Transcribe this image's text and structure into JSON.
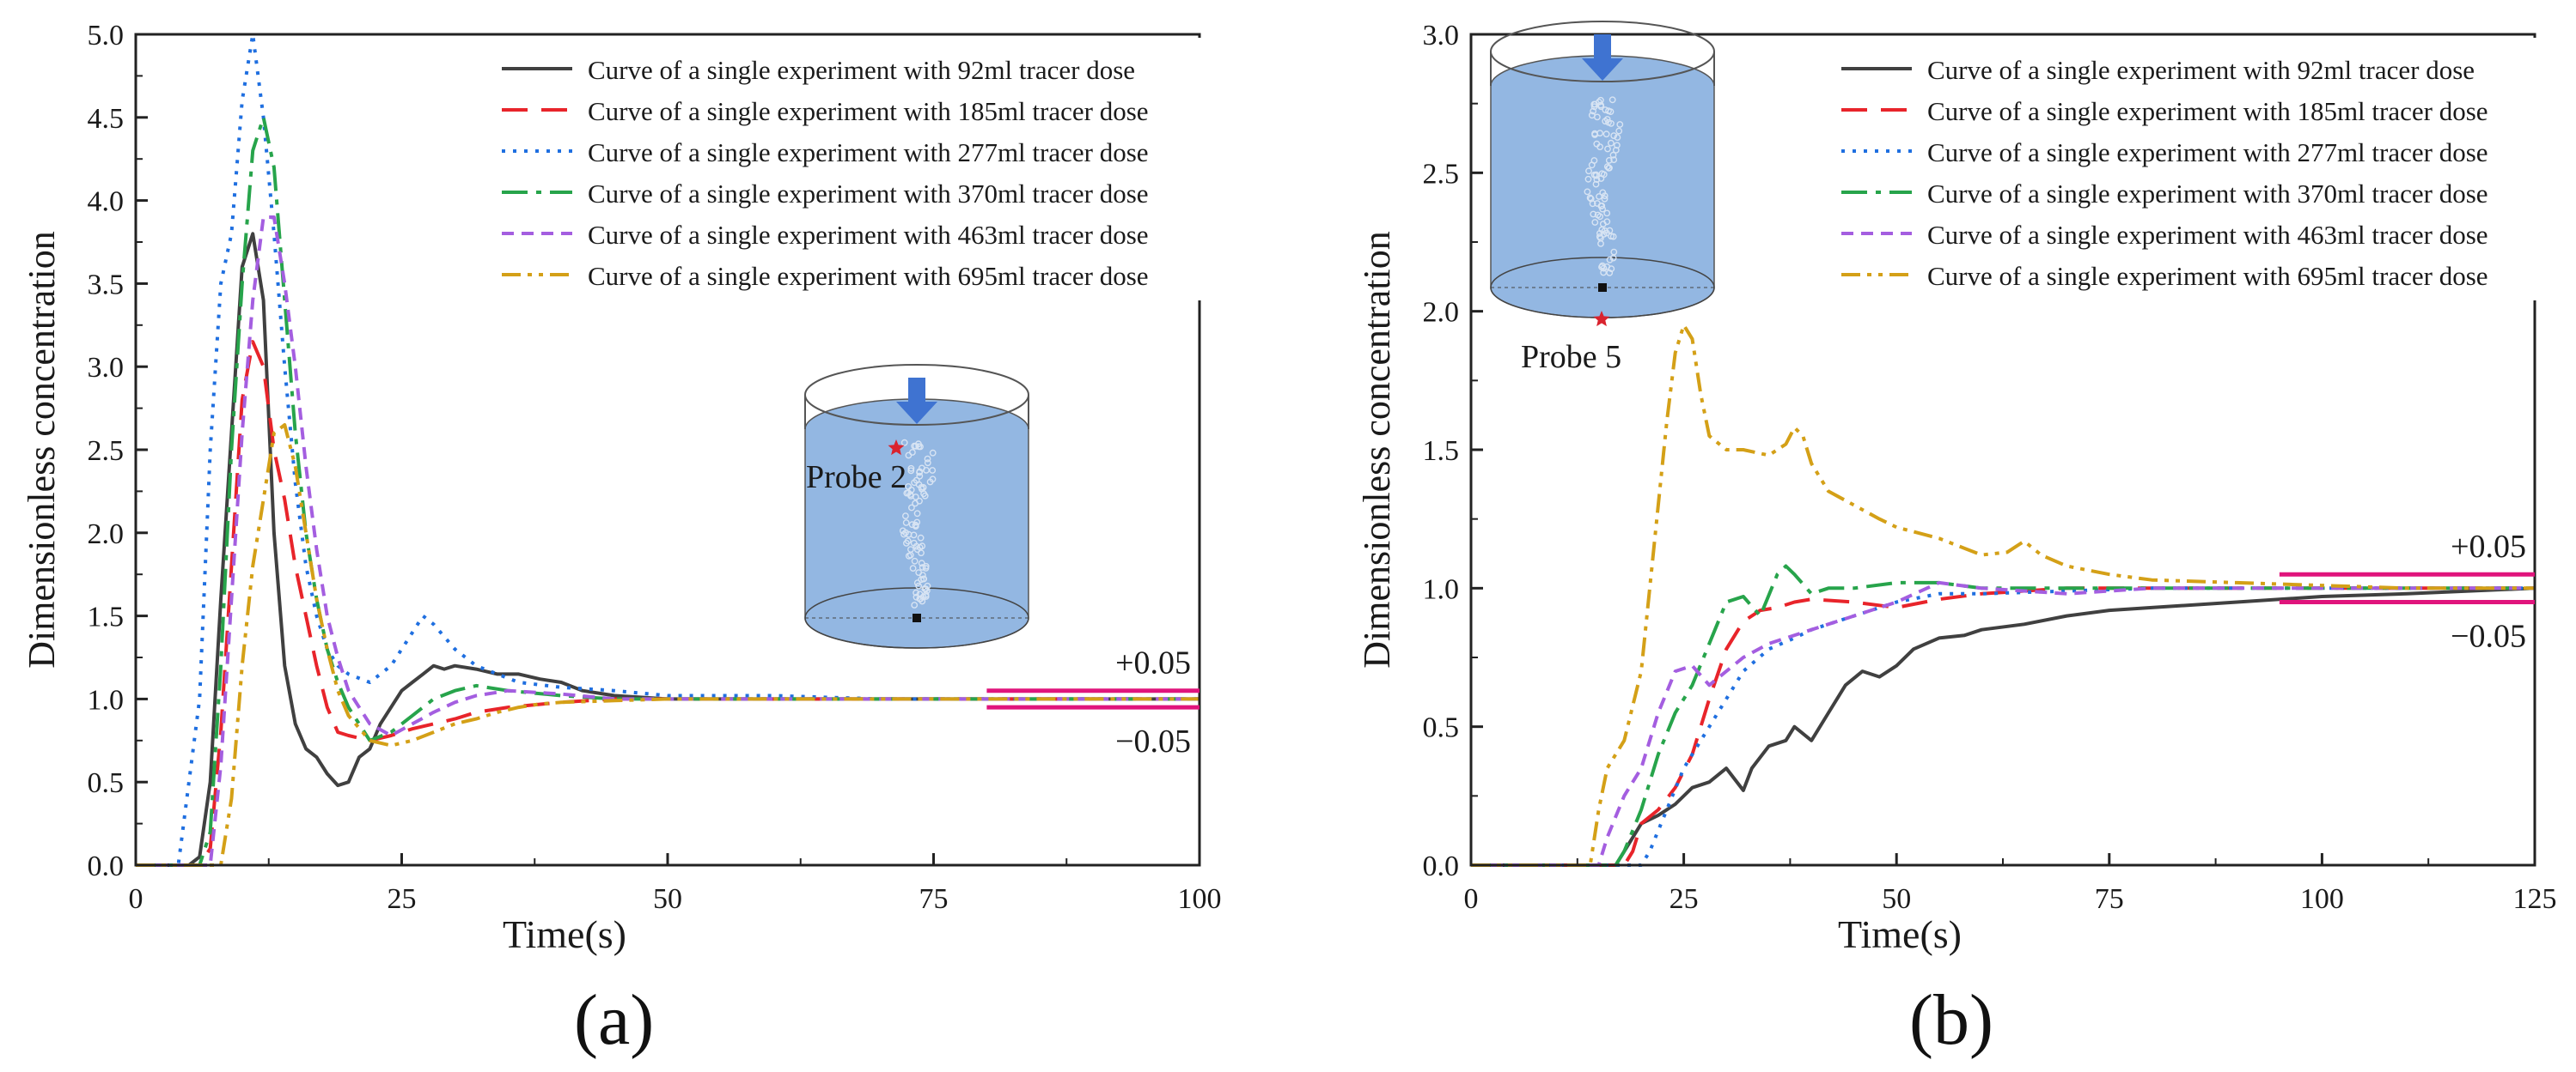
{
  "figure": {
    "panels": [
      {
        "label": "(a)",
        "probe_label": "Probe 2",
        "upper_tol": "+0.05",
        "lower_tol": "−0.05"
      },
      {
        "label": "(b)",
        "probe_label": "Probe 5",
        "upper_tol": "+0.05",
        "lower_tol": "−0.05"
      }
    ],
    "colors": {
      "92ml": "#404040",
      "185ml": "#e8242a",
      "277ml": "#1f6fe0",
      "370ml": "#27a44b",
      "463ml": "#a45ee0",
      "695ml": "#d4a017",
      "tolerance": "#e0147c",
      "tank_fill": "#6f9fd8",
      "arrow": "#3f73d1",
      "probe": "#d9232e"
    }
  },
  "chart_data": [
    {
      "type": "line",
      "title": "",
      "xlabel": "Time(s)",
      "ylabel": "Dimensionless concentration",
      "xlim": [
        0,
        100
      ],
      "ylim": [
        0,
        5.0
      ],
      "xticks": [
        0,
        25,
        50,
        75,
        100
      ],
      "yticks": [
        0.0,
        0.5,
        1.0,
        1.5,
        2.0,
        2.5,
        3.0,
        3.5,
        4.0,
        4.5,
        5.0
      ],
      "tolerance_band": {
        "x_start": 80,
        "x_end": 100,
        "upper": 1.05,
        "lower": 0.95,
        "upper_label": "+0.05",
        "lower_label": "−0.05"
      },
      "legend_position": "top-right",
      "series": [
        {
          "name": "Curve of a single experiment with 92ml tracer dose",
          "style": "solid",
          "x": [
            0,
            5,
            6,
            7,
            8,
            9,
            10,
            11,
            12,
            13,
            14,
            15,
            16,
            17,
            18,
            19,
            20,
            21,
            22,
            23,
            24,
            25,
            26,
            27,
            28,
            29,
            30,
            32,
            34,
            36,
            38,
            40,
            42,
            45,
            50,
            60,
            70,
            80,
            90,
            100
          ],
          "y": [
            0,
            0,
            0.05,
            0.5,
            1.6,
            2.6,
            3.6,
            3.8,
            3.4,
            2.0,
            1.2,
            0.85,
            0.7,
            0.65,
            0.55,
            0.48,
            0.5,
            0.65,
            0.7,
            0.85,
            0.95,
            1.05,
            1.1,
            1.15,
            1.2,
            1.18,
            1.2,
            1.18,
            1.15,
            1.15,
            1.12,
            1.1,
            1.05,
            1.02,
            1.0,
            1.0,
            1.0,
            1.0,
            1.0,
            1.0
          ]
        },
        {
          "name": "Curve of a single experiment with 185ml tracer dose",
          "style": "dashed",
          "x": [
            0,
            6,
            7,
            8,
            9,
            10,
            11,
            12,
            13,
            14,
            15,
            16,
            17,
            18,
            19,
            20,
            22,
            24,
            26,
            28,
            30,
            32,
            35,
            40,
            45,
            50,
            60,
            70,
            80,
            90,
            100
          ],
          "y": [
            0,
            0,
            0.1,
            0.8,
            1.8,
            2.8,
            3.15,
            3.0,
            2.5,
            2.2,
            1.8,
            1.5,
            1.2,
            0.95,
            0.8,
            0.78,
            0.75,
            0.78,
            0.82,
            0.85,
            0.88,
            0.92,
            0.95,
            0.98,
            1.0,
            1.0,
            1.0,
            1.0,
            1.0,
            1.0,
            1.0
          ]
        },
        {
          "name": "Curve of a single experiment with 277ml tracer dose",
          "style": "dotted",
          "x": [
            0,
            4,
            5,
            6,
            7,
            8,
            9,
            10,
            11,
            12,
            13,
            14,
            15,
            16,
            17,
            18,
            19,
            20,
            22,
            24,
            26,
            27,
            28,
            30,
            32,
            34,
            36,
            40,
            45,
            50,
            60,
            70,
            80,
            90,
            100
          ],
          "y": [
            0,
            0,
            0.5,
            1.0,
            2.5,
            3.5,
            3.8,
            4.6,
            5.0,
            4.5,
            3.8,
            3.0,
            2.3,
            1.8,
            1.5,
            1.3,
            1.2,
            1.15,
            1.1,
            1.2,
            1.4,
            1.5,
            1.45,
            1.3,
            1.2,
            1.15,
            1.1,
            1.07,
            1.05,
            1.02,
            1.02,
            1.0,
            1.0,
            1.0,
            1.0
          ]
        },
        {
          "name": "Curve of a single experiment with 370ml tracer dose",
          "style": "dashdot",
          "x": [
            0,
            6,
            7,
            8,
            9,
            10,
            11,
            12,
            13,
            14,
            15,
            16,
            17,
            18,
            19,
            20,
            22,
            24,
            26,
            28,
            30,
            32,
            35,
            40,
            45,
            50,
            60,
            70,
            80,
            90,
            100
          ],
          "y": [
            0,
            0,
            0.2,
            1.2,
            2.5,
            3.5,
            4.3,
            4.5,
            4.2,
            3.4,
            2.6,
            2.0,
            1.6,
            1.3,
            1.1,
            0.95,
            0.75,
            0.8,
            0.9,
            1.0,
            1.05,
            1.08,
            1.05,
            1.02,
            1.0,
            1.0,
            1.0,
            1.0,
            1.0,
            1.0,
            1.0
          ]
        },
        {
          "name": "Curve of a single experiment with 463ml tracer dose",
          "style": "shortdash",
          "x": [
            0,
            7,
            8,
            9,
            10,
            11,
            12,
            13,
            14,
            15,
            16,
            17,
            18,
            19,
            20,
            22,
            24,
            26,
            28,
            30,
            32,
            35,
            40,
            45,
            50,
            60,
            70,
            80,
            90,
            100
          ],
          "y": [
            0,
            0,
            0.6,
            1.6,
            2.6,
            3.4,
            3.9,
            3.9,
            3.5,
            3.0,
            2.4,
            1.9,
            1.5,
            1.25,
            1.05,
            0.85,
            0.78,
            0.85,
            0.92,
            0.98,
            1.02,
            1.05,
            1.03,
            1.0,
            1.0,
            1.0,
            1.0,
            1.0,
            1.0,
            1.0
          ]
        },
        {
          "name": "Curve of a single experiment with 695ml tracer dose",
          "style": "dashdotdot",
          "x": [
            0,
            8,
            9,
            10,
            11,
            12,
            13,
            14,
            15,
            16,
            17,
            18,
            19,
            20,
            22,
            24,
            26,
            28,
            30,
            32,
            34,
            36,
            38,
            40,
            45,
            50,
            60,
            70,
            80,
            90,
            100
          ],
          "y": [
            0,
            0,
            0.4,
            1.2,
            1.8,
            2.2,
            2.6,
            2.65,
            2.4,
            2.0,
            1.6,
            1.3,
            1.05,
            0.9,
            0.75,
            0.72,
            0.75,
            0.8,
            0.85,
            0.88,
            0.92,
            0.95,
            0.97,
            0.98,
            0.99,
            1.0,
            1.0,
            1.0,
            1.0,
            1.0,
            1.0
          ]
        }
      ]
    },
    {
      "type": "line",
      "title": "",
      "xlabel": "Time(s)",
      "ylabel": "Dimensionless concentration",
      "xlim": [
        0,
        125
      ],
      "ylim": [
        0,
        3.0
      ],
      "xticks": [
        0,
        25,
        50,
        75,
        100,
        125
      ],
      "yticks": [
        0.0,
        0.5,
        1.0,
        1.5,
        2.0,
        2.5,
        3.0
      ],
      "tolerance_band": {
        "x_start": 95,
        "x_end": 125,
        "upper": 1.05,
        "lower": 0.95,
        "upper_label": "+0.05",
        "lower_label": "−0.05"
      },
      "legend_position": "top-right",
      "series": [
        {
          "name": "Curve of a single experiment with 92ml tracer dose",
          "style": "solid",
          "x": [
            0,
            17,
            18,
            20,
            22,
            24,
            26,
            28,
            30,
            32,
            33,
            35,
            37,
            38,
            40,
            42,
            44,
            46,
            48,
            50,
            52,
            55,
            58,
            60,
            65,
            70,
            75,
            80,
            90,
            100,
            110,
            125
          ],
          "y": [
            0,
            0,
            0.05,
            0.15,
            0.18,
            0.22,
            0.28,
            0.3,
            0.35,
            0.27,
            0.35,
            0.43,
            0.45,
            0.5,
            0.45,
            0.55,
            0.65,
            0.7,
            0.68,
            0.72,
            0.78,
            0.82,
            0.83,
            0.85,
            0.87,
            0.9,
            0.92,
            0.93,
            0.95,
            0.97,
            0.98,
            1.0
          ]
        },
        {
          "name": "Curve of a single experiment with 185ml tracer dose",
          "style": "dashed",
          "x": [
            0,
            18,
            19,
            20,
            22,
            24,
            26,
            28,
            30,
            32,
            34,
            36,
            38,
            40,
            45,
            50,
            55,
            60,
            70,
            80,
            90,
            100,
            110,
            125
          ],
          "y": [
            0,
            0,
            0.05,
            0.15,
            0.2,
            0.28,
            0.4,
            0.6,
            0.78,
            0.88,
            0.92,
            0.93,
            0.95,
            0.96,
            0.95,
            0.93,
            0.96,
            0.98,
            1.0,
            1.0,
            1.0,
            1.0,
            1.0,
            1.0
          ]
        },
        {
          "name": "Curve of a single experiment with 277ml tracer dose",
          "style": "dotted",
          "x": [
            0,
            20,
            21,
            23,
            25,
            28,
            30,
            32,
            35,
            38,
            40,
            45,
            50,
            55,
            60,
            70,
            80,
            90,
            100,
            110,
            125
          ],
          "y": [
            0,
            0,
            0.05,
            0.2,
            0.35,
            0.5,
            0.6,
            0.7,
            0.78,
            0.82,
            0.85,
            0.9,
            0.95,
            0.98,
            0.98,
            0.99,
            1.0,
            1.0,
            1.0,
            1.0,
            1.0
          ]
        },
        {
          "name": "Curve of a single experiment with 370ml tracer dose",
          "style": "dashdot",
          "x": [
            0,
            17,
            18,
            20,
            22,
            24,
            26,
            28,
            30,
            32,
            34,
            36,
            37,
            38,
            40,
            42,
            45,
            50,
            55,
            60,
            70,
            80,
            90,
            100,
            110,
            125
          ],
          "y": [
            0,
            0,
            0.05,
            0.2,
            0.4,
            0.55,
            0.65,
            0.8,
            0.95,
            0.97,
            0.9,
            1.05,
            1.08,
            1.05,
            0.98,
            1.0,
            1.0,
            1.02,
            1.02,
            1.0,
            1.0,
            1.0,
            1.0,
            1.0,
            1.0,
            1.0
          ]
        },
        {
          "name": "Curve of a single experiment with 463ml tracer dose",
          "style": "shortdash",
          "x": [
            0,
            15,
            16,
            18,
            20,
            22,
            24,
            26,
            28,
            30,
            32,
            35,
            40,
            45,
            50,
            55,
            60,
            70,
            80,
            90,
            100,
            110,
            125
          ],
          "y": [
            0,
            0,
            0.1,
            0.25,
            0.35,
            0.55,
            0.7,
            0.72,
            0.65,
            0.7,
            0.75,
            0.8,
            0.85,
            0.9,
            0.95,
            1.02,
            1.0,
            0.98,
            1.0,
            1.0,
            1.0,
            1.0,
            1.0
          ]
        },
        {
          "name": "Curve of a single experiment with 695ml tracer dose",
          "style": "dashdotdot",
          "x": [
            0,
            14,
            15,
            16,
            18,
            20,
            21,
            22,
            23,
            24,
            25,
            26,
            27,
            28,
            30,
            32,
            35,
            37,
            38,
            39,
            40,
            42,
            45,
            48,
            50,
            55,
            60,
            63,
            65,
            67,
            70,
            75,
            80,
            90,
            100,
            110,
            125
          ],
          "y": [
            0,
            0,
            0.2,
            0.35,
            0.45,
            0.7,
            1.0,
            1.3,
            1.6,
            1.85,
            1.95,
            1.9,
            1.7,
            1.55,
            1.5,
            1.5,
            1.48,
            1.52,
            1.58,
            1.55,
            1.45,
            1.35,
            1.3,
            1.25,
            1.22,
            1.18,
            1.12,
            1.13,
            1.17,
            1.12,
            1.08,
            1.05,
            1.03,
            1.02,
            1.01,
            1.0,
            1.0
          ]
        }
      ]
    }
  ]
}
